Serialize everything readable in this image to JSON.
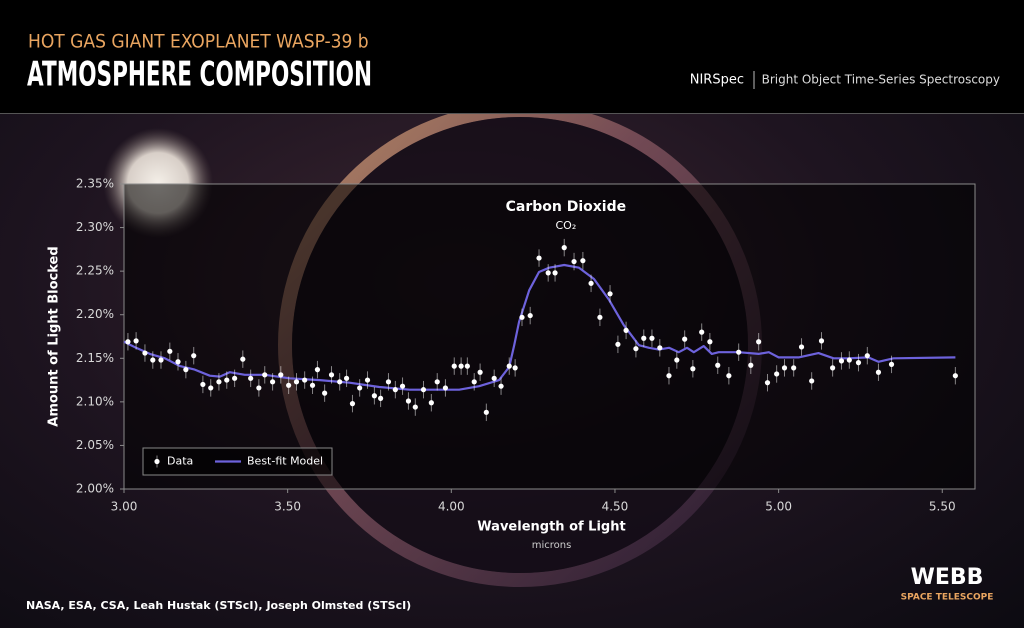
{
  "header": {
    "kicker": "HOT GAS GIANT EXOPLANET WASP-39 b",
    "title": "ATMOSPHERE COMPOSITION",
    "instrument": "NIRSpec",
    "mode": "Bright Object Time-Series Spectroscopy"
  },
  "footer": {
    "credit": "NASA, ESA, CSA, Leah Hustak (STScI), Joseph Olmsted (STScI)",
    "logo": "WEBB",
    "logo_sub": "SPACE TELESCOPE"
  },
  "chart_data": {
    "type": "scatter",
    "xlabel": "Wavelength of Light",
    "xlabel_sub": "microns",
    "ylabel": "Amount of Light Blocked",
    "annotation": {
      "text": "Carbon Dioxide",
      "sub": "CO₂",
      "x": 4.35
    },
    "xlim": [
      3.0,
      5.6
    ],
    "xticks": [
      {
        "value": 3,
        "label": "3.00"
      },
      {
        "value": 3.5,
        "label": "3.50"
      },
      {
        "value": 4,
        "label": "4.00"
      },
      {
        "value": 4.5,
        "label": "4.50"
      },
      {
        "value": 5,
        "label": "5.00"
      },
      {
        "value": 5.5,
        "label": "5.50"
      }
    ],
    "ylim": [
      2.0,
      2.35
    ],
    "yticks": [
      {
        "value": 2.0,
        "label": "2.00%"
      },
      {
        "value": 2.05,
        "label": "2.05%"
      },
      {
        "value": 2.1,
        "label": "2.10%"
      },
      {
        "value": 2.15,
        "label": "2.15%"
      },
      {
        "value": 2.2,
        "label": "2.20%"
      },
      {
        "value": 2.25,
        "label": "2.25%"
      },
      {
        "value": 2.3,
        "label": "2.30%"
      },
      {
        "value": 2.35,
        "label": "2.35%"
      }
    ],
    "legend": "lower left",
    "series": [
      {
        "name": "Data",
        "type": "scatter",
        "color": "#ffffff",
        "yerr": 0.01,
        "x": [
          3.012,
          3.037,
          3.064,
          3.088,
          3.113,
          3.14,
          3.165,
          3.189,
          3.213,
          3.241,
          3.265,
          3.29,
          3.314,
          3.338,
          3.363,
          3.387,
          3.412,
          3.43,
          3.454,
          3.479,
          3.503,
          3.527,
          3.552,
          3.576,
          3.591,
          3.613,
          3.634,
          3.659,
          3.68,
          3.698,
          3.72,
          3.744,
          3.765,
          3.784,
          3.808,
          3.829,
          3.851,
          3.869,
          3.89,
          3.915,
          3.939,
          3.957,
          3.982,
          4.009,
          4.03,
          4.049,
          4.07,
          4.088,
          4.107,
          4.131,
          4.152,
          4.177,
          4.195,
          4.216,
          4.241,
          4.268,
          4.296,
          4.317,
          4.345,
          4.375,
          4.402,
          4.427,
          4.454,
          4.485,
          4.509,
          4.534,
          4.564,
          4.588,
          4.613,
          4.637,
          4.665,
          4.689,
          4.713,
          4.738,
          4.765,
          4.79,
          4.814,
          4.848,
          4.878,
          4.915,
          4.939,
          4.966,
          4.994,
          5.018,
          5.046,
          5.07,
          5.101,
          5.131,
          5.165,
          5.192,
          5.216,
          5.244,
          5.271,
          5.305,
          5.345,
          5.54
        ],
        "values": [
          2.169,
          2.17,
          2.156,
          2.148,
          2.148,
          2.158,
          2.146,
          2.137,
          2.153,
          2.12,
          2.116,
          2.123,
          2.125,
          2.127,
          2.149,
          2.127,
          2.116,
          2.131,
          2.123,
          2.131,
          2.119,
          2.123,
          2.125,
          2.119,
          2.137,
          2.11,
          2.131,
          2.123,
          2.127,
          2.098,
          2.116,
          2.125,
          2.107,
          2.104,
          2.123,
          2.114,
          2.118,
          2.101,
          2.094,
          2.114,
          2.099,
          2.123,
          2.116,
          2.141,
          2.141,
          2.141,
          2.123,
          2.134,
          2.088,
          2.127,
          2.118,
          2.141,
          2.139,
          2.197,
          2.199,
          2.265,
          2.248,
          2.248,
          2.277,
          2.261,
          2.262,
          2.236,
          2.197,
          2.224,
          2.166,
          2.182,
          2.161,
          2.173,
          2.173,
          2.162,
          2.13,
          2.148,
          2.172,
          2.138,
          2.18,
          2.169,
          2.142,
          2.13,
          2.157,
          2.142,
          2.169,
          2.122,
          2.132,
          2.139,
          2.139,
          2.163,
          2.124,
          2.17,
          2.139,
          2.147,
          2.148,
          2.145,
          2.153,
          2.134,
          2.143,
          2.13
        ]
      },
      {
        "name": "Best-fit Model",
        "type": "line",
        "color": "#6d62dc",
        "x": [
          3.0,
          3.037,
          3.079,
          3.125,
          3.171,
          3.216,
          3.262,
          3.293,
          3.323,
          3.369,
          3.43,
          3.506,
          3.598,
          3.689,
          3.78,
          3.872,
          3.963,
          4.024,
          4.085,
          4.146,
          4.177,
          4.192,
          4.207,
          4.238,
          4.268,
          4.299,
          4.345,
          4.39,
          4.436,
          4.482,
          4.527,
          4.573,
          4.604,
          4.634,
          4.665,
          4.695,
          4.72,
          4.741,
          4.771,
          4.796,
          4.817,
          4.878,
          4.939,
          4.97,
          5.0,
          5.061,
          5.122,
          5.168,
          5.213,
          5.274,
          5.305,
          5.351,
          5.54
        ],
        "values": [
          2.169,
          2.162,
          2.155,
          2.15,
          2.141,
          2.137,
          2.13,
          2.129,
          2.134,
          2.131,
          2.131,
          2.127,
          2.125,
          2.122,
          2.117,
          2.114,
          2.114,
          2.114,
          2.118,
          2.125,
          2.14,
          2.165,
          2.192,
          2.228,
          2.249,
          2.254,
          2.257,
          2.254,
          2.241,
          2.217,
          2.188,
          2.165,
          2.162,
          2.16,
          2.162,
          2.157,
          2.162,
          2.157,
          2.164,
          2.155,
          2.157,
          2.157,
          2.155,
          2.157,
          2.151,
          2.151,
          2.156,
          2.15,
          2.15,
          2.151,
          2.146,
          2.15,
          2.151
        ]
      }
    ]
  }
}
